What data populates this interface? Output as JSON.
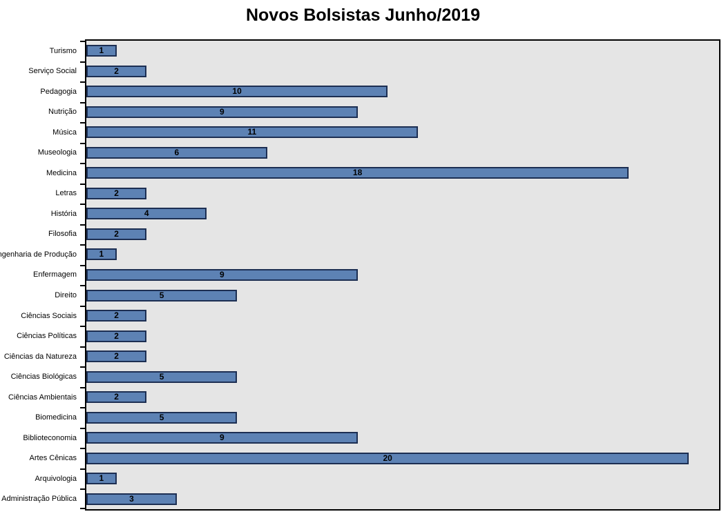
{
  "title": "Novos Bolsistas Junho/2019",
  "colors": {
    "bar_fill": "#5D82B4",
    "bar_border": "#1C2E52",
    "plot_background": "#E5E5E5",
    "plot_border": "#000000",
    "text": "#000000",
    "page_background": "#FFFFFF"
  },
  "chart_data": {
    "type": "bar",
    "orientation": "horizontal",
    "title": "Novos Bolsistas Junho/2019",
    "xlabel": "",
    "ylabel": "",
    "categories": [
      "Turismo",
      "Serviço Social",
      "Pedagogia",
      "Nutrição",
      "Música",
      "Museologia",
      "Medicina",
      "Letras",
      "História",
      "Filosofia",
      "Engenharia de Produção",
      "Enfermagem",
      "Direito",
      "Ciências Sociais",
      "Ciências Políticas",
      "Ciências da Natureza",
      "Ciências Biológicas",
      "Ciências Ambientais",
      "Biomedicina",
      "Biblioteconomia",
      "Artes Cênicas",
      "Arquivologia",
      "Administração Pública"
    ],
    "values": [
      1,
      2,
      10,
      9,
      11,
      6,
      18,
      2,
      4,
      2,
      1,
      9,
      5,
      2,
      2,
      2,
      5,
      2,
      5,
      9,
      20,
      1,
      3
    ],
    "xlim": [
      0,
      21
    ],
    "grid": false,
    "legend": false,
    "data_labels": "center-inside",
    "axis_ticks": "category-boundaries"
  }
}
